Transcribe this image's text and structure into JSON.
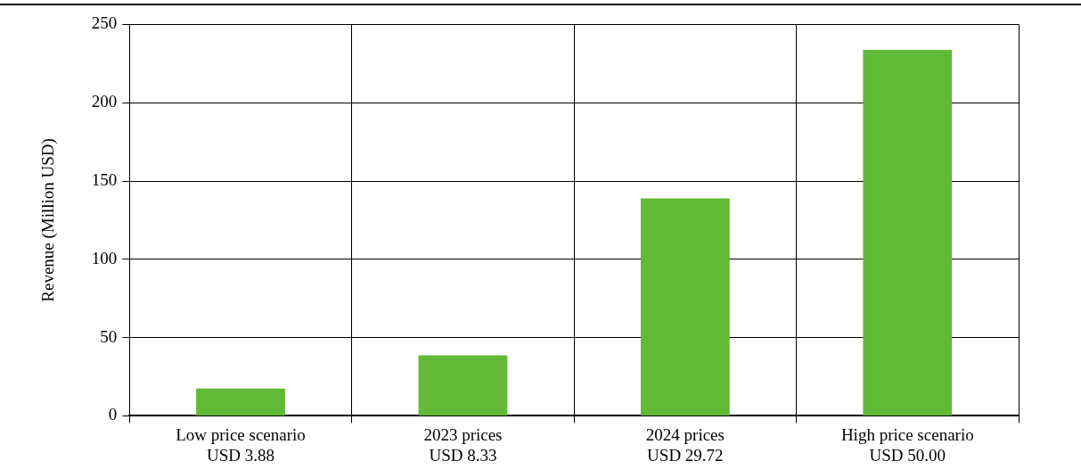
{
  "chart_data": {
    "type": "bar",
    "ylabel": "Revenue (Million USD)",
    "categories": [
      "Low price scenario\nUSD 3.88",
      "2023 prices\nUSD 8.33",
      "2024 prices\nUSD 29.72",
      "High price scenario\nUSD 50.00"
    ],
    "values": [
      17.5,
      38.6,
      138.9,
      233.7
    ],
    "color": "#62b935",
    "ylim": [
      0,
      250
    ],
    "yticks": [
      0,
      50,
      100,
      150,
      200,
      250
    ],
    "grid": true
  }
}
